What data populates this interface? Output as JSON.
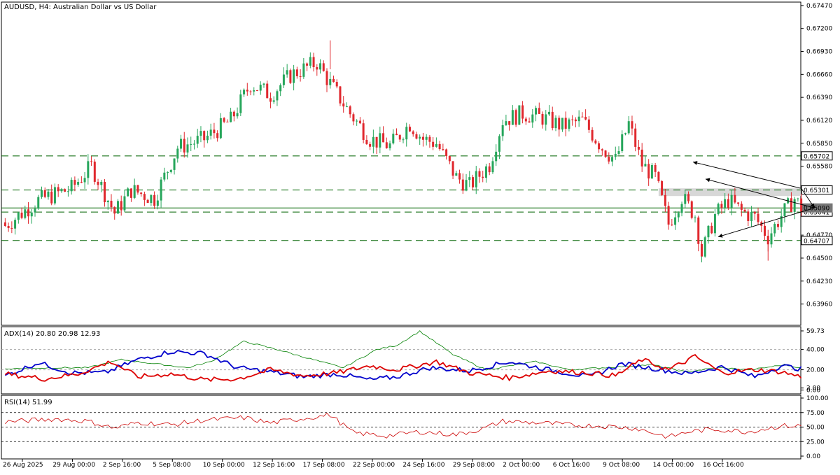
{
  "chart_data": [
    {
      "type": "candlestick",
      "title": "AUDUSD, H4:  Australian Dollar vs US Dollar",
      "y_ticks": [
        "0.67470",
        "0.67200",
        "0.66930",
        "0.66660",
        "0.66390",
        "0.66120",
        "0.65850",
        "0.65580",
        "0.64770",
        "0.64500",
        "0.64230",
        "0.63960"
      ],
      "ylim": [
        0.6371,
        0.6751
      ],
      "levels": [
        {
          "value": 0.65702,
          "label": "0.65702",
          "style": "dashed"
        },
        {
          "value": 0.65301,
          "label": "0.65301",
          "style": "dashed"
        },
        {
          "value": 0.65041,
          "label": "0.65041",
          "style": "dashed"
        },
        {
          "value": 0.64707,
          "label": "0.64707",
          "style": "dashed"
        }
      ],
      "current_price": {
        "value": 0.6509,
        "label": "0.65090"
      },
      "zone": {
        "from": 0.6523,
        "to": 0.6532
      },
      "x_ticks": [
        "26 Aug 2025",
        "29 Aug 00:00",
        "2 Sep 16:00",
        "5 Sep 08:00",
        "10 Sep 00:00",
        "12 Sep 16:00",
        "17 Sep 08:00",
        "22 Sep 00:00",
        "24 Sep 16:00",
        "29 Sep 08:00",
        "2 Oct 00:00",
        "6 Oct 16:00",
        "9 Oct 08:00",
        "14 Oct 00:00",
        "16 Oct 16:00"
      ],
      "anchors": [
        {
          "i": 0,
          "c": 0.6488
        },
        {
          "i": 10,
          "c": 0.6518
        },
        {
          "i": 20,
          "c": 0.6532
        },
        {
          "i": 26,
          "c": 0.6558
        },
        {
          "i": 33,
          "c": 0.6503
        },
        {
          "i": 38,
          "c": 0.653
        },
        {
          "i": 45,
          "c": 0.652
        },
        {
          "i": 52,
          "c": 0.658
        },
        {
          "i": 60,
          "c": 0.659
        },
        {
          "i": 68,
          "c": 0.6612
        },
        {
          "i": 74,
          "c": 0.6655
        },
        {
          "i": 80,
          "c": 0.6642
        },
        {
          "i": 86,
          "c": 0.6665
        },
        {
          "i": 94,
          "c": 0.668
        },
        {
          "i": 98,
          "c": 0.6655
        },
        {
          "i": 104,
          "c": 0.662
        },
        {
          "i": 110,
          "c": 0.659
        },
        {
          "i": 116,
          "c": 0.6582
        },
        {
          "i": 122,
          "c": 0.6608
        },
        {
          "i": 126,
          "c": 0.659
        },
        {
          "i": 130,
          "c": 0.6585
        },
        {
          "i": 136,
          "c": 0.6545
        },
        {
          "i": 140,
          "c": 0.6535
        },
        {
          "i": 146,
          "c": 0.656
        },
        {
          "i": 150,
          "c": 0.6612
        },
        {
          "i": 156,
          "c": 0.662
        },
        {
          "i": 162,
          "c": 0.6615
        },
        {
          "i": 168,
          "c": 0.6605
        },
        {
          "i": 174,
          "c": 0.6612
        },
        {
          "i": 180,
          "c": 0.658
        },
        {
          "i": 184,
          "c": 0.6565
        },
        {
          "i": 188,
          "c": 0.6608
        },
        {
          "i": 192,
          "c": 0.656
        },
        {
          "i": 196,
          "c": 0.6545
        },
        {
          "i": 200,
          "c": 0.649
        },
        {
          "i": 204,
          "c": 0.6522
        },
        {
          "i": 208,
          "c": 0.65
        },
        {
          "i": 210,
          "c": 0.6455
        },
        {
          "i": 214,
          "c": 0.65
        },
        {
          "i": 218,
          "c": 0.6518
        },
        {
          "i": 222,
          "c": 0.6505
        },
        {
          "i": 226,
          "c": 0.6498
        },
        {
          "i": 230,
          "c": 0.6475
        },
        {
          "i": 234,
          "c": 0.65
        },
        {
          "i": 238,
          "c": 0.652
        },
        {
          "i": 240,
          "c": 0.6509
        }
      ]
    },
    {
      "type": "line",
      "title": "ADX(14) 20.80 20.98 12.93",
      "y_ticks": [
        "59.73",
        "40.00",
        "20.00",
        "2.00",
        "0.00"
      ],
      "ylim": [
        -1,
        59.73
      ],
      "dotted_levels": [
        40,
        20
      ],
      "series": [
        {
          "name": "ADX",
          "color": "#008000",
          "anchors": [
            [
              0,
              21
            ],
            [
              15,
              22
            ],
            [
              25,
              22
            ],
            [
              35,
              30
            ],
            [
              45,
              26
            ],
            [
              55,
              22
            ],
            [
              62,
              28
            ],
            [
              72,
              48
            ],
            [
              82,
              40
            ],
            [
              95,
              28
            ],
            [
              102,
              22
            ],
            [
              112,
              40
            ],
            [
              118,
              44
            ],
            [
              125,
              58
            ],
            [
              135,
              35
            ],
            [
              145,
              20
            ],
            [
              160,
              28
            ],
            [
              170,
              20
            ],
            [
              180,
              22
            ],
            [
              195,
              25
            ],
            [
              205,
              18
            ],
            [
              215,
              22
            ],
            [
              225,
              20
            ],
            [
              235,
              25
            ],
            [
              240,
              22
            ]
          ]
        },
        {
          "name": "+DI",
          "color": "#0000cc",
          "anchors": [
            [
              0,
              14
            ],
            [
              10,
              27
            ],
            [
              20,
              17
            ],
            [
              30,
              17
            ],
            [
              40,
              30
            ],
            [
              50,
              38
            ],
            [
              60,
              36
            ],
            [
              70,
              22
            ],
            [
              80,
              18
            ],
            [
              90,
              13
            ],
            [
              100,
              16
            ],
            [
              110,
              10
            ],
            [
              118,
              13
            ],
            [
              128,
              22
            ],
            [
              140,
              19
            ],
            [
              152,
              28
            ],
            [
              164,
              20
            ],
            [
              176,
              13
            ],
            [
              186,
              26
            ],
            [
              198,
              20
            ],
            [
              206,
              16
            ],
            [
              216,
              23
            ],
            [
              226,
              13
            ],
            [
              234,
              24
            ],
            [
              240,
              20.8
            ]
          ]
        },
        {
          "name": "-DI",
          "color": "#dd0000",
          "anchors": [
            [
              0,
              16
            ],
            [
              12,
              11
            ],
            [
              22,
              16
            ],
            [
              32,
              28
            ],
            [
              40,
              13
            ],
            [
              50,
              16
            ],
            [
              60,
              10
            ],
            [
              70,
              11
            ],
            [
              80,
              20
            ],
            [
              90,
              14
            ],
            [
              100,
              17
            ],
            [
              110,
              24
            ],
            [
              118,
              20
            ],
            [
              130,
              28
            ],
            [
              140,
              17
            ],
            [
              152,
              12
            ],
            [
              164,
              19
            ],
            [
              176,
              17
            ],
            [
              184,
              14
            ],
            [
              192,
              30
            ],
            [
              200,
              20
            ],
            [
              208,
              33
            ],
            [
              216,
              17
            ],
            [
              226,
              20
            ],
            [
              234,
              18
            ],
            [
              240,
              12.93
            ]
          ]
        }
      ]
    },
    {
      "type": "line",
      "title": "RSI(14) 51.99",
      "y_ticks": [
        "100.00",
        "75.00",
        "50.00",
        "25.00",
        "0.00"
      ],
      "ylim": [
        0,
        100
      ],
      "dotted_levels": [
        75,
        50,
        25
      ],
      "series": [
        {
          "name": "RSI",
          "color": "#cc0000",
          "anchors": [
            [
              0,
              59
            ],
            [
              15,
              64
            ],
            [
              25,
              60
            ],
            [
              33,
              48
            ],
            [
              40,
              58
            ],
            [
              50,
              54
            ],
            [
              60,
              62
            ],
            [
              72,
              66
            ],
            [
              80,
              57
            ],
            [
              90,
              65
            ],
            [
              98,
              71
            ],
            [
              105,
              40
            ],
            [
              115,
              35
            ],
            [
              125,
              42
            ],
            [
              136,
              37
            ],
            [
              144,
              47
            ],
            [
              150,
              60
            ],
            [
              162,
              57
            ],
            [
              172,
              53
            ],
            [
              180,
              52
            ],
            [
              190,
              48
            ],
            [
              200,
              33
            ],
            [
              207,
              43
            ],
            [
              214,
              46
            ],
            [
              224,
              42
            ],
            [
              234,
              52
            ],
            [
              240,
              51.99
            ]
          ]
        }
      ]
    }
  ]
}
